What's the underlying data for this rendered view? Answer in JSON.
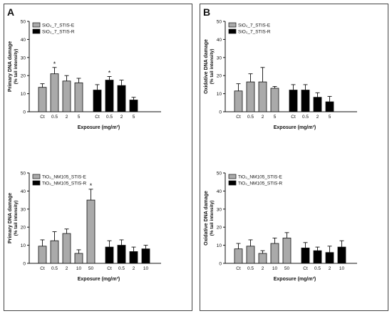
{
  "panels": [
    {
      "letter": "A"
    },
    {
      "letter": "B"
    }
  ],
  "chart_data": [
    {
      "type": "bar",
      "panel": "A",
      "ylabel": "Primary DNA damage (% tail intensity)",
      "xlabel": "Exposure (mg/m³)",
      "ylim": [
        0,
        50
      ],
      "yticks": [
        0,
        10,
        20,
        30,
        40,
        50
      ],
      "legend_position": "top-left",
      "series": [
        {
          "name": "SiO₂_7_STIS-E",
          "color": "#aaaaaa",
          "categories": [
            "Ct",
            "0.5",
            "2",
            "5"
          ],
          "values": [
            13.5,
            21,
            17,
            16
          ],
          "errors": [
            2,
            3.5,
            3,
            2.5
          ],
          "significant": [
            false,
            true,
            false,
            false
          ]
        },
        {
          "name": "SiO₂_7_STIS-R",
          "color": "#000000",
          "categories": [
            "Ct",
            "0.5",
            "2",
            "5"
          ],
          "values": [
            12,
            17.5,
            14.5,
            6.5
          ],
          "errors": [
            3,
            2,
            3,
            1.5
          ],
          "significant": [
            false,
            true,
            false,
            false
          ]
        }
      ]
    },
    {
      "type": "bar",
      "panel": "B",
      "ylabel": "Oxidative DNA damage (% tail intensity)",
      "xlabel": "Exposure (mg/m³)",
      "ylim": [
        0,
        50
      ],
      "yticks": [
        0,
        10,
        20,
        30,
        40,
        50
      ],
      "legend_position": "top-left",
      "series": [
        {
          "name": "SiO₂_7_STIS-E",
          "color": "#aaaaaa",
          "categories": [
            "Ct",
            "0.5",
            "2",
            "5"
          ],
          "values": [
            11.5,
            16.5,
            16.5,
            13
          ],
          "errors": [
            4,
            4.5,
            8,
            1
          ],
          "significant": [
            false,
            false,
            false,
            false
          ]
        },
        {
          "name": "SiO₂_7_STIS-R",
          "color": "#000000",
          "categories": [
            "Ct",
            "0.5",
            "2",
            "5"
          ],
          "values": [
            12,
            12,
            8,
            5.5
          ],
          "errors": [
            3,
            3,
            2.5,
            3
          ],
          "significant": [
            false,
            false,
            false,
            false
          ]
        }
      ]
    },
    {
      "type": "bar",
      "panel": "A",
      "ylabel": "Primary DNA damage (% tail intensity)",
      "xlabel": "Exposure (mg/m³)",
      "ylim": [
        0,
        50
      ],
      "yticks": [
        0,
        10,
        20,
        30,
        40,
        50
      ],
      "legend_position": "top-left",
      "series": [
        {
          "name": "TiO₂_NM105_STIS-E",
          "color": "#aaaaaa",
          "categories": [
            "Ct",
            "0.5",
            "2",
            "10",
            "50"
          ],
          "values": [
            9.5,
            12.5,
            16.5,
            5.5,
            35
          ],
          "errors": [
            3.5,
            5,
            2.5,
            2,
            6
          ],
          "significant": [
            false,
            false,
            false,
            false,
            true
          ]
        },
        {
          "name": "TiO₂_NM105_STIS-R",
          "color": "#000000",
          "categories": [
            "Ct",
            "0.5",
            "2",
            "10"
          ],
          "values": [
            9,
            10,
            6.5,
            8
          ],
          "errors": [
            3.5,
            3,
            2.5,
            2
          ],
          "significant": [
            false,
            false,
            false,
            false
          ]
        }
      ]
    },
    {
      "type": "bar",
      "panel": "B",
      "ylabel": "Oxidative DNA damage (% tail intensity)",
      "xlabel": "Exposure (mg/m³)",
      "ylim": [
        0,
        50
      ],
      "yticks": [
        0,
        10,
        20,
        30,
        40,
        50
      ],
      "legend_position": "top-left",
      "series": [
        {
          "name": "TiO₂_NM105_STIS-E",
          "color": "#aaaaaa",
          "categories": [
            "Ct",
            "0.5",
            "2",
            "10",
            "50"
          ],
          "values": [
            8,
            9.5,
            5.5,
            11,
            14
          ],
          "errors": [
            3,
            3.5,
            1.5,
            3,
            3
          ],
          "significant": [
            false,
            false,
            false,
            false,
            false
          ]
        },
        {
          "name": "TiO₂_NM105_STIS-R",
          "color": "#000000",
          "categories": [
            "Ct",
            "0.5",
            "2",
            "10"
          ],
          "values": [
            8.5,
            7,
            6,
            9
          ],
          "errors": [
            3,
            2,
            3.5,
            3.5
          ],
          "significant": [
            false,
            false,
            false,
            false
          ]
        }
      ]
    }
  ]
}
